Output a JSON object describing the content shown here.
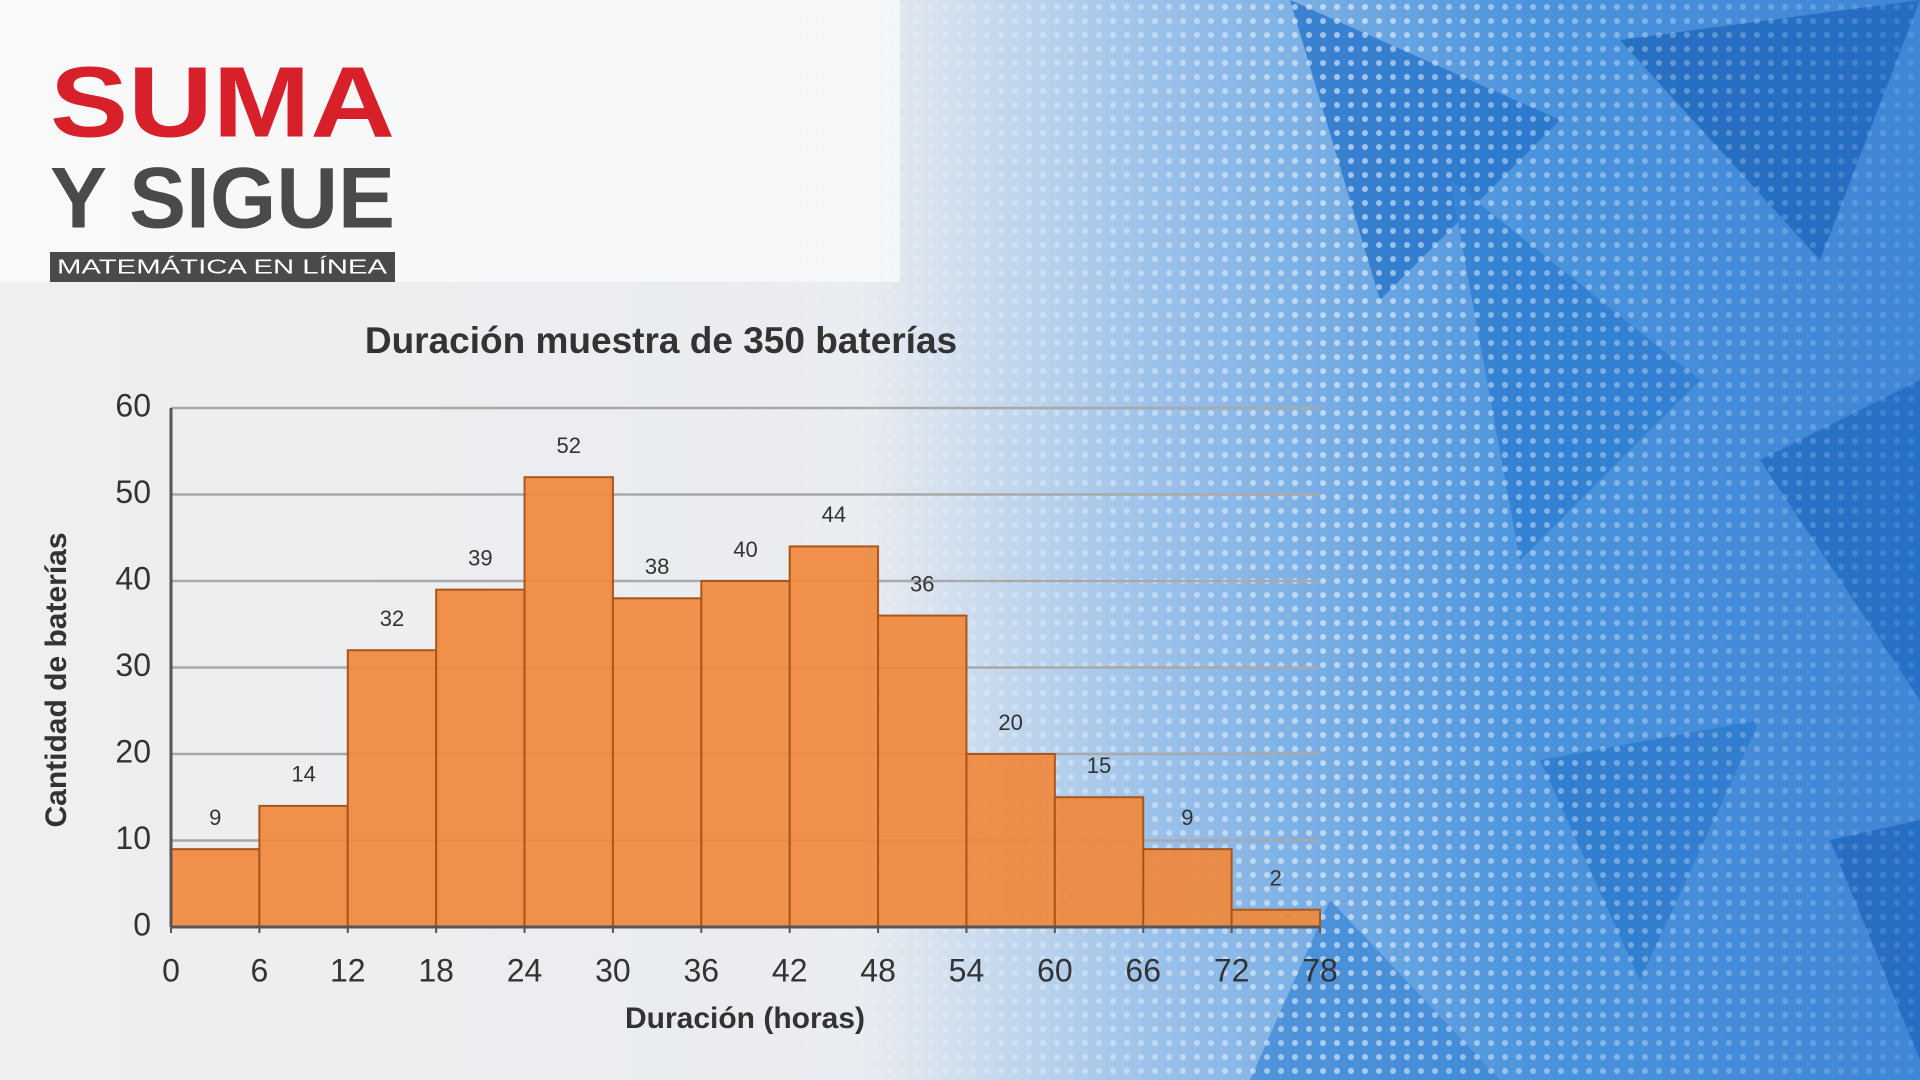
{
  "logo": {
    "line1": "SUMA",
    "line2": "Y SIGUE",
    "tagline": "MATEMÁTICA EN LÍNEA"
  },
  "chart_data": {
    "type": "histogram",
    "title": "Duración muestra de 350 baterías",
    "x_label": "Duración (horas)",
    "y_label": "Cantidad de baterías",
    "bins": [
      0,
      6,
      12,
      18,
      24,
      30,
      36,
      42,
      48,
      54,
      60,
      66,
      72,
      78
    ],
    "values": [
      9,
      14,
      32,
      39,
      52,
      38,
      40,
      44,
      36,
      20,
      15,
      9,
      2
    ],
    "color": "#f0883c",
    "xlim": [
      0,
      78
    ],
    "xticks": [
      0,
      6,
      12,
      18,
      24,
      30,
      36,
      42,
      48,
      54,
      60,
      66,
      72,
      78
    ],
    "ylim": [
      0,
      60
    ],
    "yticks": [
      0,
      10,
      20,
      30,
      40,
      50,
      60
    ],
    "grid": true
  }
}
